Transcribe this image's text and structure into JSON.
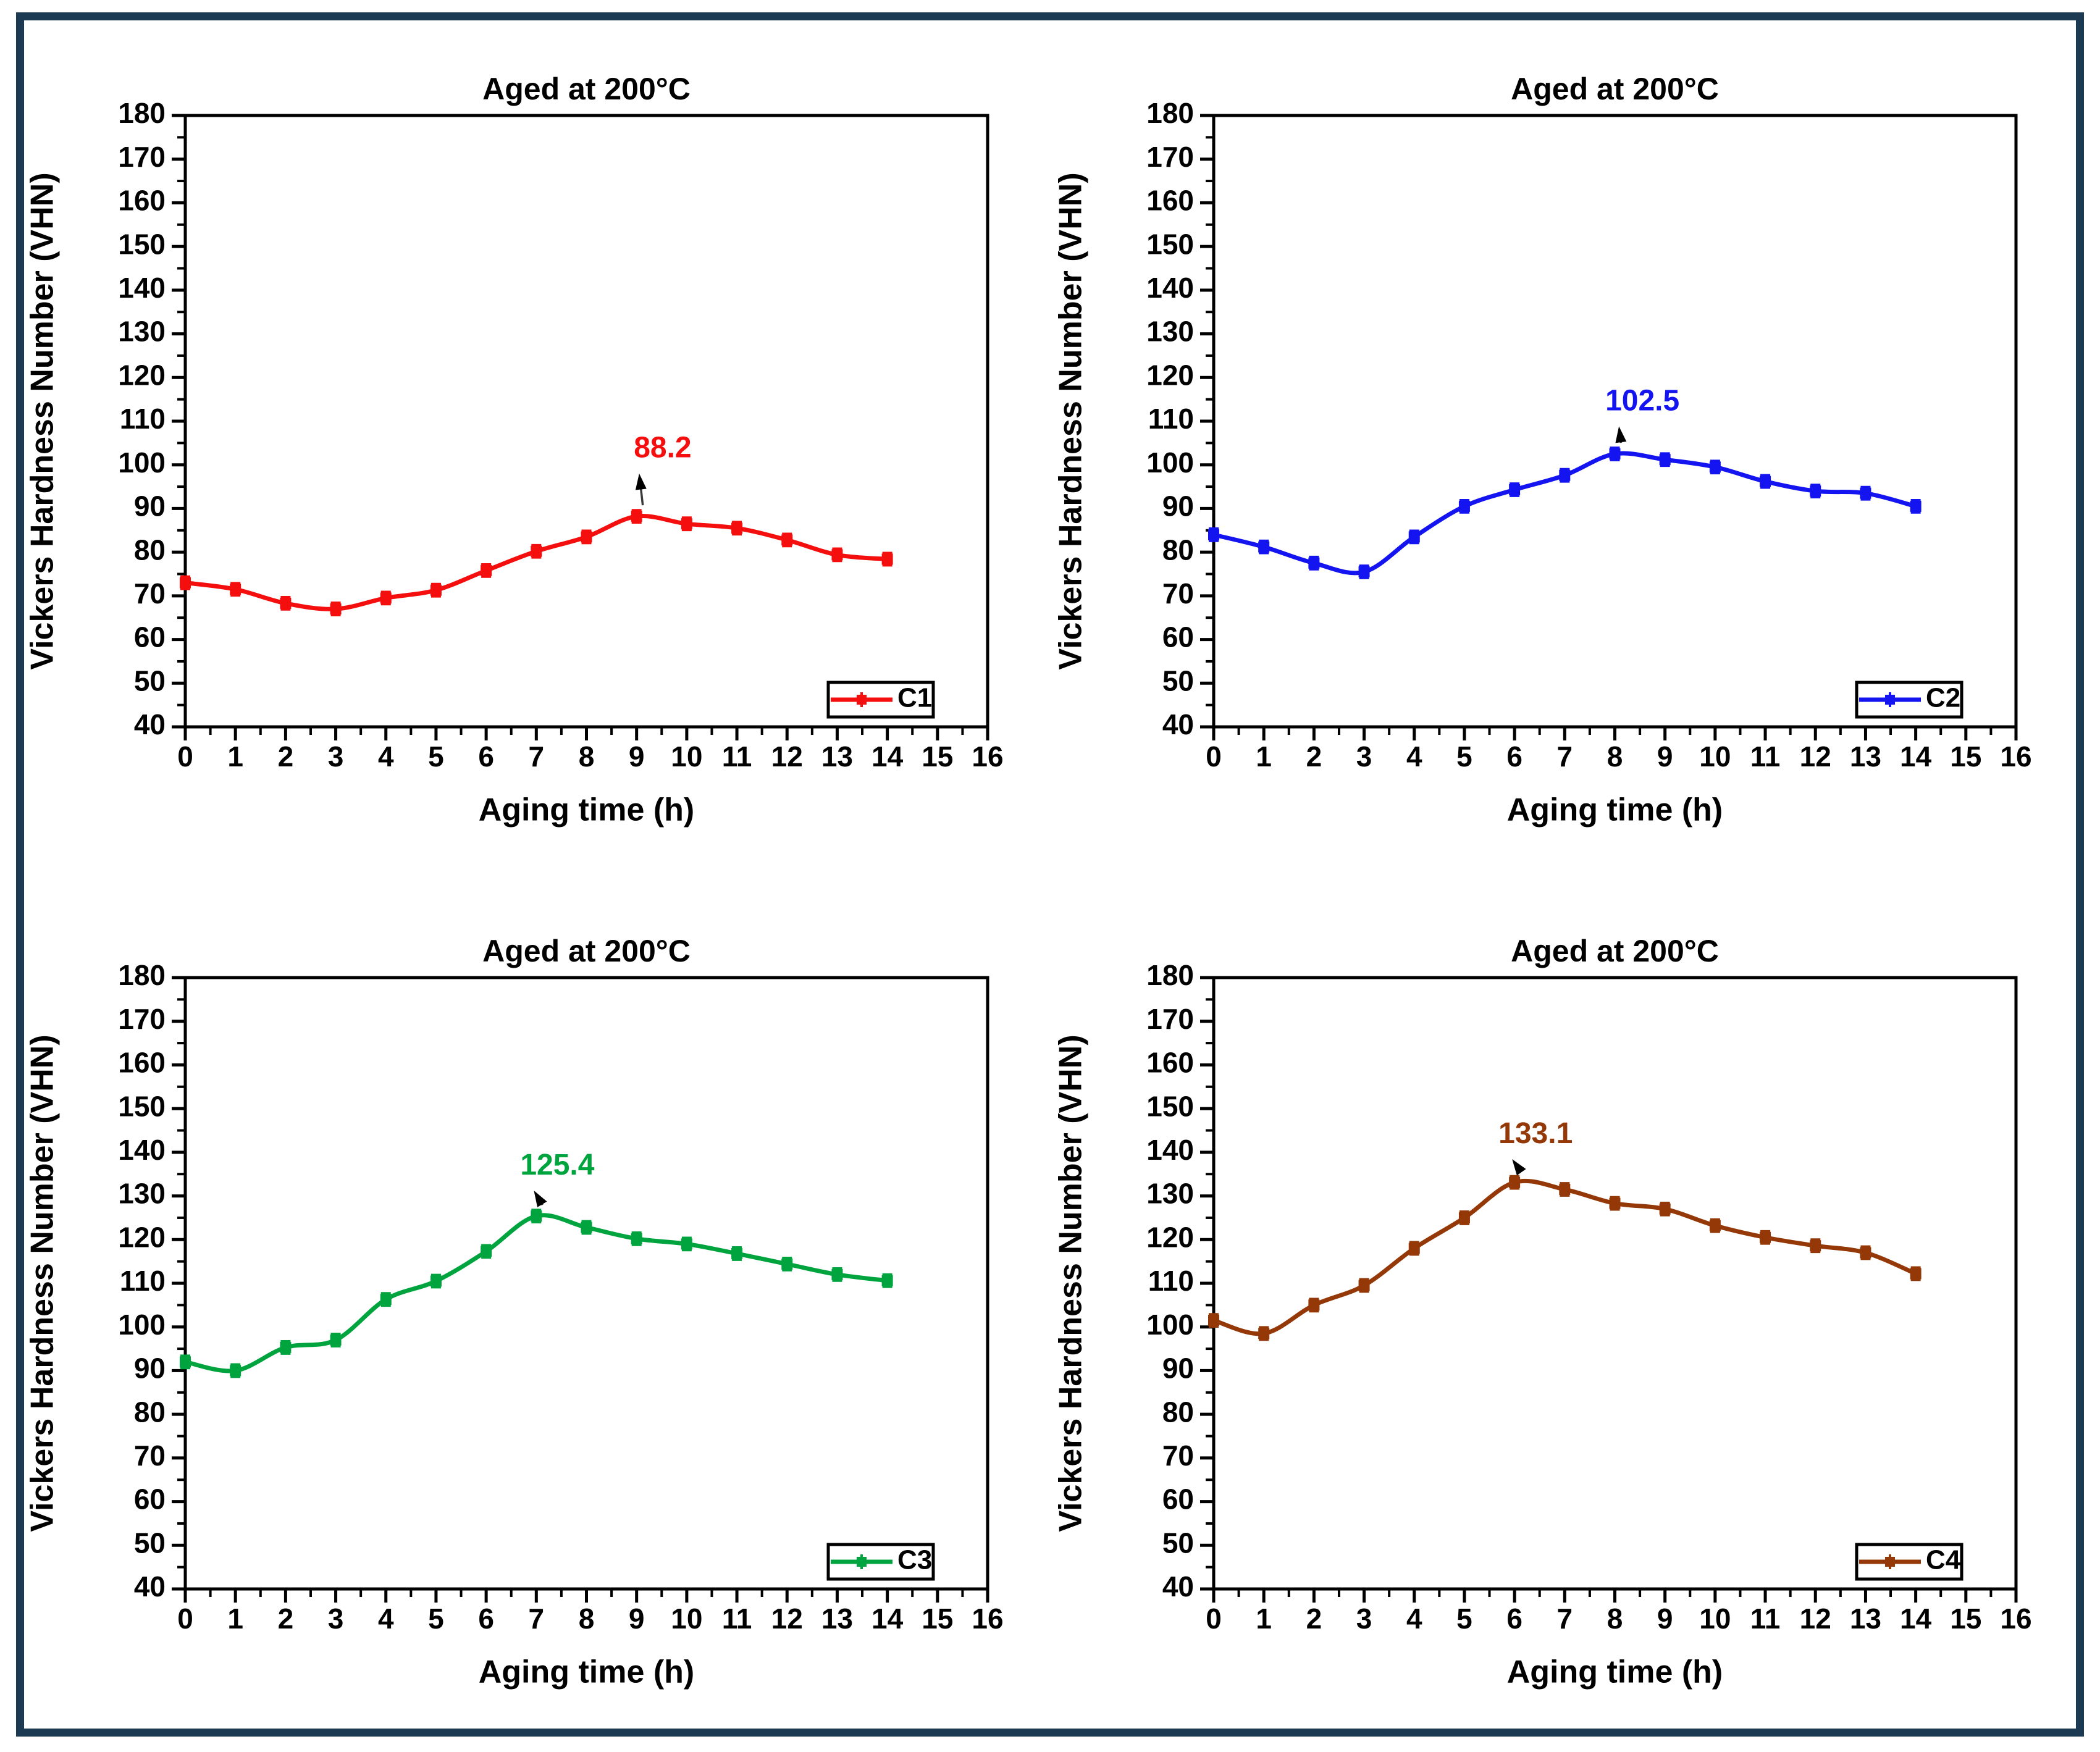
{
  "figure": {
    "background_color": "#FFFFFF",
    "border_color": "#1C3A52",
    "axis_color": "#000000",
    "annotation_arrow_color": "#3a3a3a"
  },
  "chart_data": [
    {
      "type": "line",
      "id": "c1",
      "title": "Aged at 200°C",
      "xlabel": "Aging time (h)",
      "ylabel": "Vickers Hardness Number (VHN)",
      "xlim": [
        0,
        16
      ],
      "ylim": [
        40,
        180
      ],
      "x_major_step": 1,
      "x_minor_step": 0.5,
      "y_major_step": 10,
      "y_minor_step": 5,
      "grid": false,
      "legend_position": "bottom-right",
      "series": [
        {
          "name": "C1",
          "color": "#F40E0E",
          "x": [
            0,
            1,
            2,
            3,
            4,
            5,
            6,
            7,
            8,
            9,
            10,
            11,
            12,
            13,
            14
          ],
          "values": [
            73.0,
            71.5,
            68.3,
            67.0,
            69.5,
            71.3,
            75.8,
            80.2,
            83.5,
            88.2,
            86.5,
            85.5,
            82.8,
            79.4,
            78.4
          ],
          "error_bar": 1.4
        }
      ],
      "peak_annotation": {
        "text": "88.2",
        "at_x": 9,
        "at_y": 88.2,
        "label_dx_hours": 0.52,
        "label_dy_vhn": 13.5
      }
    },
    {
      "type": "line",
      "id": "c2",
      "title": "Aged at 200°C",
      "xlabel": "Aging time (h)",
      "ylabel": "Vickers Hardness Number (VHN)",
      "xlim": [
        0,
        16
      ],
      "ylim": [
        40,
        180
      ],
      "x_major_step": 1,
      "x_minor_step": 0.5,
      "y_major_step": 10,
      "y_minor_step": 5,
      "grid": false,
      "legend_position": "bottom-right",
      "series": [
        {
          "name": "C2",
          "color": "#1414F0",
          "x": [
            0,
            1,
            2,
            3,
            4,
            5,
            6,
            7,
            8,
            9,
            10,
            11,
            12,
            13,
            14
          ],
          "values": [
            84.0,
            81.2,
            77.5,
            75.5,
            83.5,
            90.5,
            94.3,
            97.6,
            102.5,
            101.2,
            99.5,
            96.2,
            94.0,
            93.5,
            90.5
          ],
          "error_bar": 1.4
        }
      ],
      "peak_annotation": {
        "text": "102.5",
        "at_x": 8,
        "at_y": 102.5,
        "label_dx_hours": 0.55,
        "label_dy_vhn": 10.0
      }
    },
    {
      "type": "line",
      "id": "c3",
      "title": "Aged at 200°C",
      "xlabel": "Aging time (h)",
      "ylabel": "Vickers Hardness Number (VHN)",
      "xlim": [
        0,
        16
      ],
      "ylim": [
        40,
        180
      ],
      "x_major_step": 1,
      "x_minor_step": 0.5,
      "y_major_step": 10,
      "y_minor_step": 5,
      "grid": false,
      "legend_position": "bottom-right",
      "series": [
        {
          "name": "C3",
          "color": "#00A43E",
          "x": [
            0,
            1,
            2,
            3,
            4,
            5,
            6,
            7,
            8,
            9,
            10,
            11,
            12,
            13,
            14
          ],
          "values": [
            92.0,
            90.0,
            95.3,
            97.0,
            106.3,
            110.5,
            117.3,
            125.4,
            122.8,
            120.2,
            119.0,
            116.8,
            114.4,
            112.0,
            110.6
          ],
          "error_bar": 1.4
        }
      ],
      "peak_annotation": {
        "text": "125.4",
        "at_x": 7,
        "at_y": 125.4,
        "label_dx_hours": 0.42,
        "label_dy_vhn": 9.5
      }
    },
    {
      "type": "line",
      "id": "c4",
      "title": "Aged at 200°C",
      "xlabel": "Aging time (h)",
      "ylabel": "Vickers Hardness Number (VHN)",
      "xlim": [
        0,
        16
      ],
      "ylim": [
        40,
        180
      ],
      "x_major_step": 1,
      "x_minor_step": 0.5,
      "y_major_step": 10,
      "y_minor_step": 5,
      "grid": false,
      "legend_position": "bottom-right",
      "series": [
        {
          "name": "C4",
          "color": "#943808",
          "x": [
            0,
            1,
            2,
            3,
            4,
            5,
            6,
            7,
            8,
            9,
            10,
            11,
            12,
            13,
            14
          ],
          "values": [
            101.5,
            98.5,
            105.0,
            109.5,
            118.0,
            125.0,
            133.1,
            131.5,
            128.3,
            127.0,
            123.2,
            120.5,
            118.6,
            117.0,
            112.2
          ],
          "error_bar": 1.4
        }
      ],
      "peak_annotation": {
        "text": "133.1",
        "at_x": 6,
        "at_y": 133.1,
        "label_dx_hours": 0.42,
        "label_dy_vhn": 9.0
      }
    }
  ]
}
